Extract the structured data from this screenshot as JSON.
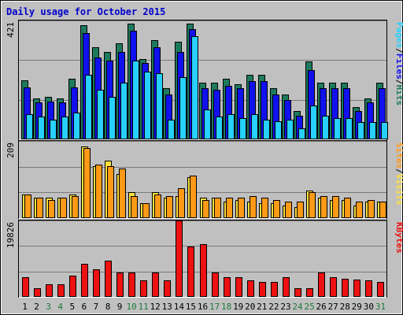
{
  "chart_data": {
    "type": "bar",
    "title": "Daily usage for October 2015",
    "days": [
      "1",
      "2",
      "3",
      "4",
      "5",
      "6",
      "7",
      "8",
      "9",
      "10",
      "11",
      "12",
      "13",
      "14",
      "15",
      "16",
      "17",
      "18",
      "19",
      "20",
      "21",
      "22",
      "23",
      "24",
      "25",
      "26",
      "27",
      "28",
      "29",
      "30",
      "31"
    ],
    "weekend_days": [
      "3",
      "4",
      "10",
      "11",
      "17",
      "18",
      "24",
      "25",
      "31"
    ],
    "colors": {
      "pages": "#27d0ff",
      "files": "#1111ee",
      "hits": "#1e7a5e",
      "visits": "#ffe23a",
      "sites": "#ff9a17",
      "kbytes": "#ee1111",
      "weekday_label": "#000000",
      "weekend_label": "#1e7a3a",
      "title": "#0000cc"
    },
    "panels": [
      {
        "name": "pages-files-hits",
        "ymax_label": "421",
        "ymax": 421,
        "legend": [
          {
            "text": "Pages",
            "color": "#27d0ff"
          },
          {
            "text": "/",
            "color": "#000000"
          },
          {
            "text": "Files",
            "color": "#1111ee"
          },
          {
            "text": "/",
            "color": "#000000"
          },
          {
            "text": "Hits",
            "color": "#1e7a5e"
          }
        ],
        "series": [
          {
            "name": "Hits",
            "color": "#1e7a5e",
            "values": [
              210,
              145,
              150,
              145,
              215,
              405,
              325,
              310,
              340,
              410,
              285,
              350,
              180,
              345,
              410,
              200,
              200,
              215,
              195,
              230,
              230,
              180,
              160,
              100,
              275,
              200,
              200,
              200,
              115,
              145,
              200
            ]
          },
          {
            "name": "Files",
            "color": "#1111ee",
            "values": [
              185,
              130,
              135,
              130,
              185,
              375,
              290,
              280,
              310,
              385,
              270,
              325,
              160,
              310,
              390,
              180,
              175,
              190,
              180,
              205,
              205,
              160,
              140,
              85,
              245,
              180,
              180,
              180,
              100,
              130,
              180
            ]
          },
          {
            "name": "Pages",
            "color": "#27d0ff",
            "values": [
              90,
              80,
              70,
              80,
              95,
              230,
              175,
              150,
              200,
              280,
              240,
              235,
              70,
              220,
              365,
              105,
              80,
              90,
              75,
              90,
              70,
              65,
              70,
              40,
              120,
              85,
              75,
              75,
              60,
              60,
              60
            ]
          }
        ]
      },
      {
        "name": "visits-sites",
        "ymax_label": "209",
        "ymax": 209,
        "legend": [
          {
            "text": "Sites",
            "color": "#ff9a17"
          },
          {
            "text": "/",
            "color": "#000000"
          },
          {
            "text": "Visits",
            "color": "#ffe23a"
          }
        ],
        "series": [
          {
            "name": "Visits",
            "color": "#ffe23a",
            "values": [
              65,
              55,
              55,
              55,
              65,
              195,
              140,
              155,
              120,
              70,
              40,
              70,
              55,
              60,
              110,
              55,
              55,
              45,
              50,
              45,
              40,
              40,
              35,
              30,
              75,
              55,
              50,
              50,
              35,
              45,
              45
            ]
          },
          {
            "name": "Sites",
            "color": "#ff9a17",
            "values": [
              65,
              55,
              50,
              55,
              60,
              190,
              145,
              140,
              135,
              60,
              40,
              65,
              60,
              80,
              115,
              50,
              55,
              55,
              55,
              60,
              55,
              50,
              45,
              45,
              70,
              60,
              60,
              55,
              45,
              50,
              45
            ]
          }
        ]
      },
      {
        "name": "kbytes",
        "ymax_label": "19826",
        "ymax": 19826,
        "legend": [
          {
            "text": "KBytes",
            "color": "#ee1111"
          }
        ],
        "series": [
          {
            "name": "KBytes",
            "color": "#ee1111",
            "values": [
              5200,
              2200,
              3200,
              3200,
              5500,
              8600,
              7200,
              9400,
              6400,
              6400,
              4200,
              6400,
              4200,
              19826,
              13100,
              13600,
              6400,
              5100,
              5100,
              4200,
              3800,
              3800,
              5200,
              2200,
              2200,
              6400,
              5200,
              4800,
              4400,
              4200,
              3800
            ]
          }
        ]
      }
    ]
  }
}
